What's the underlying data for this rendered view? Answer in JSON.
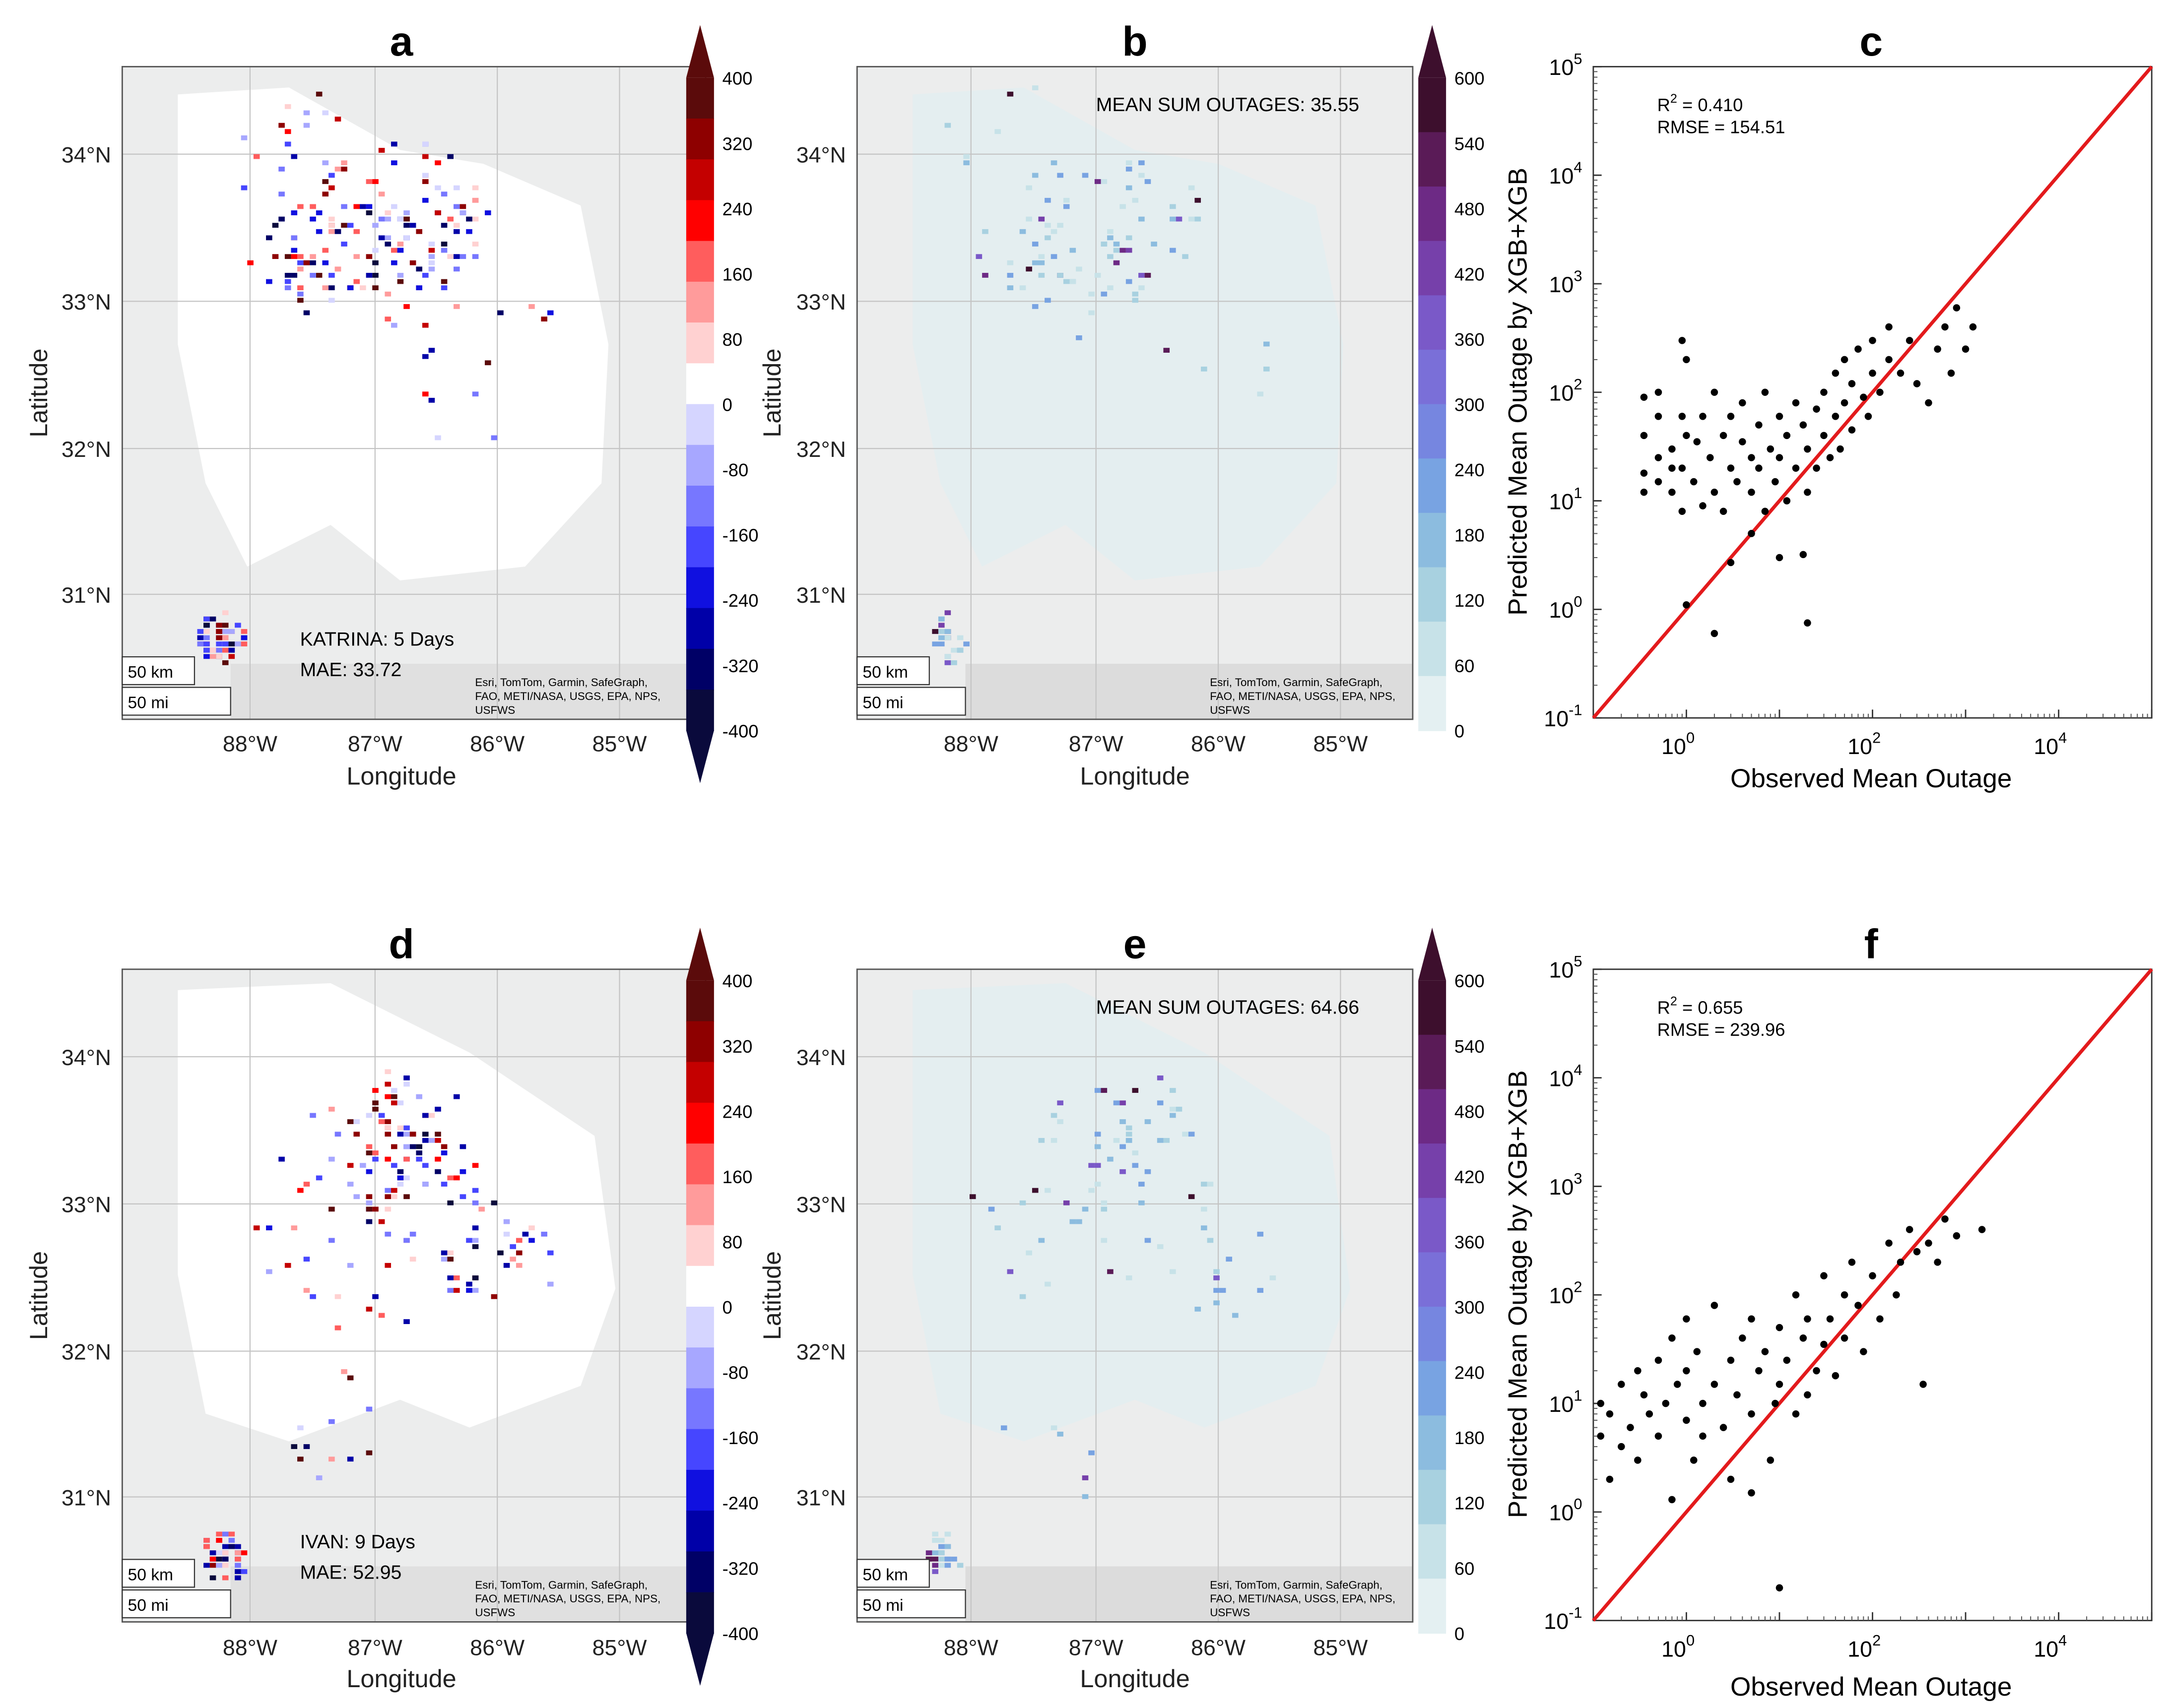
{
  "figure": {
    "panel_letters": [
      "a",
      "b",
      "c",
      "d",
      "e",
      "f"
    ],
    "lat_ticks": [
      "34°N",
      "33°N",
      "32°N",
      "31°N"
    ],
    "lon_ticks": [
      "88°W",
      "87°W",
      "86°W",
      "85°W"
    ],
    "map_xlabel": "Longitude",
    "map_ylabel": "Latitude",
    "scale_km": "50 km",
    "scale_mi": "50 mi",
    "attribution": [
      "Esri, TomTom, Garmin, SafeGraph,",
      "FAO, METI/NASA, USGS, EPA, NPS,",
      "USFWS"
    ]
  },
  "colorbars": {
    "diverging_ticks": [
      "400",
      "320",
      "240",
      "160",
      "80",
      "0",
      "-80",
      "-160",
      "-240",
      "-320",
      "-400"
    ],
    "sequential_ticks": [
      "600",
      "540",
      "480",
      "420",
      "360",
      "300",
      "240",
      "180",
      "120",
      "60",
      "0"
    ]
  },
  "maps": {
    "a": {
      "storm": "KATRINA: 5 Days",
      "mae": "MAE: 33.72"
    },
    "b": {
      "mean_sum": "MEAN SUM OUTAGES: 35.55"
    },
    "d": {
      "storm": "IVAN: 9 Days",
      "mae": "MAE: 52.95"
    },
    "e": {
      "mean_sum": "MEAN SUM OUTAGES: 64.66"
    }
  },
  "chart_data": [
    {
      "panel": "c",
      "type": "scatter",
      "xscale": "log",
      "yscale": "log",
      "xlim": [
        0.1,
        100000
      ],
      "ylim": [
        0.1,
        100000
      ],
      "xlabel": "Observed Mean Outage",
      "ylabel": "Predicted Mean Outage by XGB+XGB",
      "x_tick_labels": [
        "10^0",
        "10^2",
        "10^4"
      ],
      "y_tick_labels": [
        "10^-1",
        "10^0",
        "10^1",
        "10^2",
        "10^3",
        "10^4",
        "10^5"
      ],
      "r2_label": "R",
      "r2_sup": "2",
      "r2_value": " = 0.410",
      "rmse": "RMSE = 154.51",
      "reference_line": "y = x",
      "points": [
        [
          0.35,
          12
        ],
        [
          0.35,
          90
        ],
        [
          0.35,
          18
        ],
        [
          0.35,
          40
        ],
        [
          0.5,
          25
        ],
        [
          0.5,
          60
        ],
        [
          0.5,
          15
        ],
        [
          0.5,
          100
        ],
        [
          0.7,
          30
        ],
        [
          0.7,
          20
        ],
        [
          0.7,
          12
        ],
        [
          0.9,
          300
        ],
        [
          0.9,
          60
        ],
        [
          0.9,
          8
        ],
        [
          0.9,
          20
        ],
        [
          1,
          1.1
        ],
        [
          1,
          200
        ],
        [
          1,
          40
        ],
        [
          1.2,
          15
        ],
        [
          1.3,
          35
        ],
        [
          1.5,
          9
        ],
        [
          1.5,
          60
        ],
        [
          1.8,
          25
        ],
        [
          2,
          0.6
        ],
        [
          2,
          100
        ],
        [
          2,
          12
        ],
        [
          2.5,
          40
        ],
        [
          2.5,
          8
        ],
        [
          3,
          2.7
        ],
        [
          3,
          60
        ],
        [
          3,
          20
        ],
        [
          3.5,
          15
        ],
        [
          4,
          35
        ],
        [
          4,
          80
        ],
        [
          5,
          5
        ],
        [
          5,
          25
        ],
        [
          5,
          12
        ],
        [
          6,
          50
        ],
        [
          6,
          20
        ],
        [
          7,
          100
        ],
        [
          7,
          8
        ],
        [
          8,
          30
        ],
        [
          9,
          15
        ],
        [
          10,
          60
        ],
        [
          10,
          3
        ],
        [
          10,
          25
        ],
        [
          12,
          40
        ],
        [
          12,
          10
        ],
        [
          15,
          80
        ],
        [
          15,
          20
        ],
        [
          18,
          3.2
        ],
        [
          18,
          50
        ],
        [
          20,
          0.75
        ],
        [
          20,
          30
        ],
        [
          20,
          12
        ],
        [
          25,
          70
        ],
        [
          25,
          20
        ],
        [
          30,
          100
        ],
        [
          30,
          40
        ],
        [
          35,
          25
        ],
        [
          40,
          150
        ],
        [
          40,
          60
        ],
        [
          45,
          30
        ],
        [
          50,
          200
        ],
        [
          50,
          80
        ],
        [
          60,
          45
        ],
        [
          60,
          120
        ],
        [
          70,
          250
        ],
        [
          80,
          90
        ],
        [
          90,
          60
        ],
        [
          100,
          150
        ],
        [
          100,
          300
        ],
        [
          120,
          100
        ],
        [
          150,
          200
        ],
        [
          150,
          400
        ],
        [
          200,
          150
        ],
        [
          250,
          300
        ],
        [
          300,
          120
        ],
        [
          400,
          80
        ],
        [
          500,
          250
        ],
        [
          600,
          400
        ],
        [
          700,
          150
        ],
        [
          800,
          600
        ],
        [
          1000,
          250
        ],
        [
          1200,
          400
        ]
      ]
    },
    {
      "panel": "f",
      "type": "scatter",
      "xscale": "log",
      "yscale": "log",
      "xlim": [
        0.1,
        100000
      ],
      "ylim": [
        0.1,
        100000
      ],
      "xlabel": "Observed Mean Outage",
      "ylabel": "Predicted Mean Outage by XGB+XGB",
      "x_tick_labels": [
        "10^0",
        "10^2",
        "10^4"
      ],
      "y_tick_labels": [
        "10^-1",
        "10^0",
        "10^1",
        "10^2",
        "10^3",
        "10^4",
        "10^5"
      ],
      "r2_label": "R",
      "r2_sup": "2",
      "r2_value": " = 0.655",
      "rmse": "RMSE = 239.96",
      "reference_line": "y = x",
      "points": [
        [
          0.12,
          5
        ],
        [
          0.12,
          10
        ],
        [
          0.15,
          2
        ],
        [
          0.15,
          8
        ],
        [
          0.2,
          15
        ],
        [
          0.2,
          4
        ],
        [
          0.25,
          6
        ],
        [
          0.3,
          20
        ],
        [
          0.3,
          3
        ],
        [
          0.35,
          12
        ],
        [
          0.4,
          8
        ],
        [
          0.5,
          25
        ],
        [
          0.5,
          5
        ],
        [
          0.6,
          10
        ],
        [
          0.7,
          1.3
        ],
        [
          0.7,
          40
        ],
        [
          0.8,
          15
        ],
        [
          1,
          7
        ],
        [
          1,
          20
        ],
        [
          1,
          60
        ],
        [
          1.2,
          3
        ],
        [
          1.3,
          30
        ],
        [
          1.5,
          10
        ],
        [
          1.5,
          5
        ],
        [
          2,
          80
        ],
        [
          2,
          15
        ],
        [
          2.5,
          6
        ],
        [
          3,
          25
        ],
        [
          3,
          2
        ],
        [
          3.5,
          12
        ],
        [
          4,
          40
        ],
        [
          5,
          1.5
        ],
        [
          5,
          8
        ],
        [
          5,
          60
        ],
        [
          6,
          20
        ],
        [
          7,
          30
        ],
        [
          8,
          3
        ],
        [
          9,
          10
        ],
        [
          10,
          0.2
        ],
        [
          10,
          15
        ],
        [
          10,
          50
        ],
        [
          12,
          25
        ],
        [
          15,
          100
        ],
        [
          15,
          8
        ],
        [
          18,
          40
        ],
        [
          20,
          12
        ],
        [
          20,
          60
        ],
        [
          25,
          20
        ],
        [
          30,
          150
        ],
        [
          30,
          35
        ],
        [
          35,
          60
        ],
        [
          40,
          18
        ],
        [
          50,
          100
        ],
        [
          50,
          40
        ],
        [
          60,
          200
        ],
        [
          70,
          80
        ],
        [
          80,
          30
        ],
        [
          100,
          150
        ],
        [
          120,
          60
        ],
        [
          150,
          300
        ],
        [
          180,
          100
        ],
        [
          200,
          200
        ],
        [
          250,
          400
        ],
        [
          300,
          250
        ],
        [
          350,
          15
        ],
        [
          400,
          300
        ],
        [
          500,
          200
        ],
        [
          600,
          500
        ],
        [
          800,
          350
        ],
        [
          1500,
          400
        ]
      ]
    }
  ]
}
